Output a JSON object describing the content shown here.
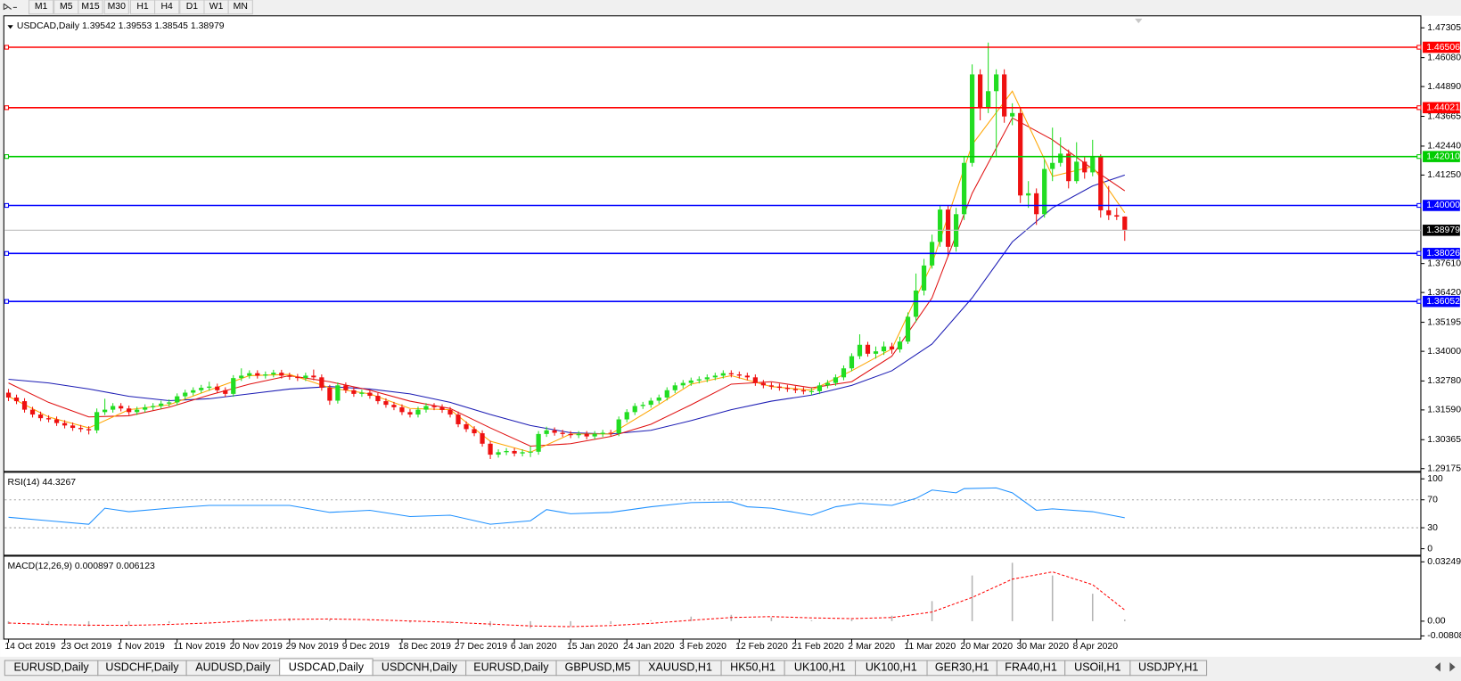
{
  "toolbar": {
    "timeframes": [
      "M1",
      "M5",
      "M15",
      "M30",
      "H1",
      "H4",
      "D1",
      "W1",
      "MN"
    ]
  },
  "chart_data": [
    {
      "type": "candlestick",
      "title": "USDCAD,Daily  1.39542 1.39553 1.38545 1.38979",
      "up_color": "#22dd22",
      "down_color": "#ee1111",
      "ylim": [
        1.291,
        1.4776
      ],
      "yticks": [
        1.47305,
        {
          "value": 1.4608,
          "label": "1.46080"
        },
        {
          "value": 1.4489,
          "label": "1.44890"
        },
        1.43665,
        {
          "value": 1.4244,
          "label": "1.42440"
        },
        {
          "value": 1.4125,
          "label": "1.41250"
        },
        {
          "value": 1.3761,
          "label": "1.37610"
        },
        {
          "value": 1.3642,
          "label": "1.36420"
        },
        1.35195,
        {
          "value": 1.34,
          "label": "1.34000"
        },
        {
          "value": 1.3278,
          "label": "1.32780"
        },
        {
          "value": 1.3159,
          "label": "1.31590"
        },
        1.30365,
        1.29175
      ],
      "levels": [
        {
          "value": 1.46506,
          "label": "1.46506",
          "color": "#ff0000"
        },
        {
          "value": 1.44021,
          "label": "1.44021",
          "color": "#ff0000"
        },
        {
          "value": 1.4201,
          "label": "1.42010",
          "color": "#00cc00"
        },
        {
          "value": 1.4,
          "label": "1.40000",
          "color": "#0000ff"
        },
        {
          "value": 1.38026,
          "label": "1.38026",
          "color": "#0000ff"
        },
        {
          "value": 1.36052,
          "label": "1.36052",
          "color": "#0000ff"
        }
      ],
      "last": {
        "value": 1.38979,
        "label": "1.38979",
        "color": "#000000"
      },
      "categories": [
        "14 Oct 2019",
        null,
        null,
        null,
        null,
        null,
        null,
        "23 Oct 2019",
        null,
        null,
        null,
        null,
        null,
        null,
        "1 Nov 2019",
        null,
        null,
        null,
        null,
        null,
        null,
        "11 Nov 2019",
        null,
        null,
        null,
        null,
        null,
        null,
        "20 Nov 2019",
        null,
        null,
        null,
        null,
        null,
        null,
        "29 Nov 2019",
        null,
        null,
        null,
        null,
        null,
        null,
        "9 Dec 2019",
        null,
        null,
        null,
        null,
        null,
        null,
        "18 Dec 2019",
        null,
        null,
        null,
        null,
        null,
        null,
        "27 Dec 2019",
        null,
        null,
        null,
        null,
        null,
        null,
        "6 Jan 2020",
        null,
        null,
        null,
        null,
        null,
        null,
        "15 Jan 2020",
        null,
        null,
        null,
        null,
        null,
        null,
        "24 Jan 2020",
        null,
        null,
        null,
        null,
        null,
        null,
        "3 Feb 2020",
        null,
        null,
        null,
        null,
        null,
        null,
        "12 Feb 2020",
        null,
        null,
        null,
        null,
        null,
        null,
        "21 Feb 2020",
        null,
        null,
        null,
        null,
        null,
        null,
        "2 Mar 2020",
        null,
        null,
        null,
        null,
        null,
        null,
        "11 Mar 2020",
        null,
        null,
        null,
        null,
        null,
        null,
        "20 Mar 2020",
        null,
        null,
        null,
        null,
        null,
        null,
        "30 Mar 2020",
        null,
        null,
        null,
        null,
        null,
        null,
        "8 Apr 2020",
        null,
        null,
        null,
        null,
        null,
        null
      ],
      "open": [
        1.323,
        1.321,
        1.3195,
        1.316,
        1.314,
        1.3125,
        1.312,
        1.3105,
        1.3095,
        1.3085,
        1.308,
        1.3075,
        1.315,
        1.316,
        1.3175,
        1.3165,
        1.315,
        1.316,
        1.317,
        1.3175,
        1.3185,
        1.319,
        1.3215,
        1.323,
        1.324,
        1.325,
        1.3255,
        1.324,
        1.3225,
        1.329,
        1.33,
        1.331,
        1.33,
        1.3305,
        1.3312,
        1.33,
        1.3295,
        1.329,
        1.33,
        1.3293,
        1.325,
        1.3197,
        1.326,
        1.324,
        1.3225,
        1.323,
        1.3217,
        1.3195,
        1.318,
        1.317,
        1.315,
        1.314,
        1.316,
        1.3175,
        1.317,
        1.3159,
        1.314,
        1.31,
        1.308,
        1.3063,
        1.302,
        1.2975,
        1.2985,
        1.299,
        1.298,
        1.2985,
        1.2987,
        1.306,
        1.3075,
        1.3065,
        1.306,
        1.3055,
        1.306,
        1.305,
        1.306,
        1.3065,
        1.3063,
        1.312,
        1.315,
        1.3175,
        1.318,
        1.3197,
        1.321,
        1.324,
        1.326,
        1.327,
        1.328,
        1.3285,
        1.3293,
        1.33,
        1.331,
        1.3305,
        1.33,
        1.3293,
        1.327,
        1.326,
        1.3255,
        1.325,
        1.3245,
        1.324,
        1.3235,
        1.3236,
        1.326,
        1.327,
        1.3293,
        1.333,
        1.338,
        1.3427,
        1.339,
        1.34,
        1.342,
        1.3408,
        1.344,
        1.3542,
        1.365,
        1.3753,
        1.385,
        1.3983,
        1.383,
        1.3964,
        1.4175,
        1.4539,
        1.44,
        1.447,
        1.4539,
        1.4366,
        1.438,
        1.4041,
        1.405,
        1.3964,
        1.415,
        1.4175,
        1.4213,
        1.41,
        1.418,
        1.4136,
        1.42,
        1.398,
        1.396,
        1.39542
      ],
      "high": [
        1.3245,
        1.3222,
        1.3207,
        1.3172,
        1.3152,
        1.3137,
        1.3132,
        1.3117,
        1.3107,
        1.3097,
        1.3092,
        1.3165,
        1.3205,
        1.3187,
        1.3187,
        1.3177,
        1.3172,
        1.3182,
        1.3187,
        1.3197,
        1.3202,
        1.3227,
        1.3242,
        1.3252,
        1.3262,
        1.3275,
        1.3267,
        1.3252,
        1.3302,
        1.333,
        1.3322,
        1.3322,
        1.3317,
        1.3324,
        1.3324,
        1.3312,
        1.3307,
        1.3312,
        1.3325,
        1.3305,
        1.3262,
        1.3272,
        1.3272,
        1.3252,
        1.3242,
        1.3242,
        1.3229,
        1.3207,
        1.3192,
        1.3182,
        1.3162,
        1.3172,
        1.3187,
        1.3187,
        1.3182,
        1.3171,
        1.3152,
        1.3112,
        1.3092,
        1.3075,
        1.3032,
        1.2997,
        1.3002,
        1.3002,
        1.2997,
        1.301,
        1.3072,
        1.309,
        1.3087,
        1.3077,
        1.3072,
        1.3072,
        1.3072,
        1.3072,
        1.3077,
        1.3077,
        1.3132,
        1.3162,
        1.3187,
        1.3192,
        1.3209,
        1.3222,
        1.3252,
        1.3272,
        1.3282,
        1.3292,
        1.3297,
        1.3305,
        1.3312,
        1.3322,
        1.3322,
        1.3317,
        1.3312,
        1.3305,
        1.3282,
        1.3272,
        1.3267,
        1.3262,
        1.3257,
        1.3252,
        1.3248,
        1.3272,
        1.3282,
        1.3305,
        1.3342,
        1.3392,
        1.347,
        1.3439,
        1.342,
        1.344,
        1.3435,
        1.346,
        1.356,
        1.372,
        1.378,
        1.388,
        1.4,
        1.4,
        1.399,
        1.42,
        1.458,
        1.456,
        1.467,
        1.456,
        1.456,
        1.442,
        1.44,
        1.41,
        1.407,
        1.419,
        1.432,
        1.428,
        1.423,
        1.426,
        1.42,
        1.427,
        1.421,
        1.408,
        1.399,
        1.39553
      ],
      "low": [
        1.3195,
        1.3183,
        1.3148,
        1.3128,
        1.3113,
        1.3108,
        1.3093,
        1.3083,
        1.3073,
        1.3068,
        1.3058,
        1.3063,
        1.3138,
        1.3148,
        1.3153,
        1.3138,
        1.3138,
        1.3148,
        1.3158,
        1.3163,
        1.3173,
        1.3178,
        1.3203,
        1.3218,
        1.3228,
        1.3238,
        1.3228,
        1.3213,
        1.3213,
        1.3278,
        1.3288,
        1.3288,
        1.3288,
        1.3293,
        1.3288,
        1.3283,
        1.3278,
        1.3278,
        1.3281,
        1.3238,
        1.318,
        1.3185,
        1.3228,
        1.3213,
        1.3213,
        1.3205,
        1.3183,
        1.3168,
        1.3158,
        1.3138,
        1.3128,
        1.3128,
        1.3148,
        1.3158,
        1.3147,
        1.3128,
        1.3088,
        1.3068,
        1.3051,
        1.3008,
        1.2957,
        1.2963,
        1.2973,
        1.2968,
        1.2968,
        1.2965,
        1.2975,
        1.3048,
        1.3053,
        1.3048,
        1.3043,
        1.3043,
        1.3038,
        1.3038,
        1.3048,
        1.3051,
        1.3051,
        1.3108,
        1.3138,
        1.3163,
        1.3168,
        1.3185,
        1.3198,
        1.3228,
        1.3248,
        1.3258,
        1.3268,
        1.3273,
        1.3281,
        1.3288,
        1.3293,
        1.3288,
        1.3281,
        1.3258,
        1.3248,
        1.3243,
        1.3238,
        1.3233,
        1.3228,
        1.3223,
        1.322,
        1.3224,
        1.3248,
        1.3258,
        1.3281,
        1.3318,
        1.3368,
        1.3378,
        1.337,
        1.3385,
        1.339,
        1.3395,
        1.343,
        1.352,
        1.363,
        1.374,
        1.383,
        1.379,
        1.381,
        1.394,
        1.416,
        1.435,
        1.438,
        1.42,
        1.434,
        1.433,
        1.401,
        1.399,
        1.392,
        1.395,
        1.41,
        1.416,
        1.407,
        1.409,
        1.411,
        1.412,
        1.395,
        1.394,
        1.394,
        1.38545
      ],
      "close": [
        1.321,
        1.3195,
        1.316,
        1.314,
        1.3125,
        1.312,
        1.3105,
        1.3095,
        1.3085,
        1.308,
        1.3075,
        1.315,
        1.316,
        1.3175,
        1.3165,
        1.315,
        1.316,
        1.317,
        1.3175,
        1.3185,
        1.319,
        1.3215,
        1.323,
        1.324,
        1.325,
        1.3255,
        1.324,
        1.3225,
        1.329,
        1.33,
        1.331,
        1.33,
        1.3305,
        1.3312,
        1.33,
        1.3295,
        1.329,
        1.33,
        1.3293,
        1.325,
        1.3197,
        1.326,
        1.324,
        1.3225,
        1.323,
        1.3217,
        1.3195,
        1.318,
        1.317,
        1.315,
        1.314,
        1.316,
        1.3175,
        1.317,
        1.3159,
        1.314,
        1.31,
        1.308,
        1.3063,
        1.302,
        1.2975,
        1.2985,
        1.299,
        1.298,
        1.2985,
        1.2987,
        1.306,
        1.3075,
        1.3065,
        1.306,
        1.3055,
        1.306,
        1.305,
        1.306,
        1.3065,
        1.3063,
        1.312,
        1.315,
        1.3175,
        1.318,
        1.3197,
        1.321,
        1.324,
        1.326,
        1.327,
        1.328,
        1.3285,
        1.3293,
        1.33,
        1.331,
        1.3305,
        1.33,
        1.3293,
        1.327,
        1.326,
        1.3255,
        1.325,
        1.3245,
        1.324,
        1.3235,
        1.3236,
        1.326,
        1.327,
        1.3293,
        1.333,
        1.338,
        1.3427,
        1.339,
        1.34,
        1.342,
        1.3408,
        1.344,
        1.3542,
        1.365,
        1.3753,
        1.385,
        1.3983,
        1.383,
        1.3964,
        1.4175,
        1.4539,
        1.44,
        1.447,
        1.4539,
        1.4366,
        1.438,
        1.4041,
        1.405,
        1.3964,
        1.415,
        1.4175,
        1.4213,
        1.41,
        1.418,
        1.4136,
        1.42,
        1.398,
        1.396,
        1.3954,
        1.38979
      ],
      "ma_x": [
        0,
        5,
        10,
        15,
        20,
        25,
        30,
        35,
        40,
        45,
        50,
        55,
        60,
        65,
        70,
        75,
        80,
        85,
        90,
        95,
        100,
        105,
        110,
        115,
        120,
        125,
        130,
        135,
        139
      ],
      "ma": [
        {
          "color": "#1c1cb4",
          "values": [
            1.3285,
            1.327,
            1.3245,
            1.3215,
            1.3197,
            1.3205,
            1.3225,
            1.3245,
            1.3255,
            1.3245,
            1.3225,
            1.319,
            1.314,
            1.3095,
            1.3065,
            1.306,
            1.3075,
            1.3115,
            1.316,
            1.3195,
            1.322,
            1.326,
            1.332,
            1.343,
            1.362,
            1.385,
            1.399,
            1.408,
            1.4125
          ]
        },
        {
          "color": "#e01010",
          "values": [
            1.327,
            1.319,
            1.313,
            1.3135,
            1.317,
            1.322,
            1.3265,
            1.33,
            1.3275,
            1.324,
            1.3195,
            1.3165,
            1.3085,
            1.301,
            1.302,
            1.305,
            1.31,
            1.318,
            1.3265,
            1.3275,
            1.325,
            1.3275,
            1.338,
            1.362,
            1.405,
            1.436,
            1.427,
            1.415,
            1.406
          ]
        },
        {
          "color": "#ffa500",
          "values": [
            1.3215,
            1.313,
            1.3085,
            1.316,
            1.318,
            1.324,
            1.33,
            1.3305,
            1.325,
            1.3225,
            1.3165,
            1.316,
            1.303,
            1.2985,
            1.306,
            1.306,
            1.316,
            1.3265,
            1.33,
            1.3255,
            1.324,
            1.332,
            1.341,
            1.376,
            1.425,
            1.447,
            1.412,
            1.416,
            1.397
          ]
        }
      ]
    },
    {
      "type": "line",
      "title": "RSI(14) 44.3267",
      "color": "#1e90ff",
      "ylim": [
        -8,
        108
      ],
      "yticks": [
        100,
        70,
        30,
        0
      ],
      "levels": [
        70,
        30
      ],
      "x": [
        0,
        5,
        10,
        12,
        15,
        20,
        25,
        30,
        35,
        40,
        45,
        50,
        55,
        60,
        65,
        67,
        70,
        75,
        80,
        85,
        90,
        92,
        95,
        100,
        103,
        106,
        110,
        113,
        115,
        118,
        119,
        123,
        125,
        128,
        130,
        135,
        139
      ],
      "values": [
        45,
        40,
        35,
        58,
        53,
        58,
        62,
        62,
        62,
        52,
        55,
        46,
        48,
        35,
        40,
        56,
        50,
        52,
        60,
        66,
        67,
        60,
        58,
        48,
        60,
        65,
        62,
        72,
        84,
        80,
        86,
        87,
        80,
        55,
        57,
        53,
        44.3267
      ]
    },
    {
      "type": "bar",
      "title": "MACD(12,26,9) 0.000897 0.006123",
      "color": "#b4b4b4",
      "ylim": [
        -0.0093,
        0.0351
      ],
      "yticks": [
        0.032493,
        {
          "value": 0,
          "label": "0.00"
        },
        -0.00808
      ],
      "x": [
        0,
        5,
        10,
        15,
        20,
        25,
        30,
        35,
        40,
        45,
        50,
        55,
        60,
        65,
        70,
        75,
        80,
        85,
        90,
        95,
        100,
        105,
        110,
        115,
        120,
        125,
        130,
        135,
        139
      ],
      "values": [
        -0.0015,
        -0.0022,
        -0.0028,
        -0.0022,
        -0.0012,
        -0.0002,
        0.001,
        0.0015,
        0.001,
        0.0002,
        -0.0008,
        -0.0012,
        -0.0028,
        -0.0038,
        -0.0028,
        -0.0015,
        0.0005,
        0.0025,
        0.0035,
        0.002,
        0.0005,
        0.001,
        0.003,
        0.011,
        0.025,
        0.032,
        0.025,
        0.015,
        0.000897
      ],
      "signal": {
        "color": "#ff0000",
        "values": [
          -0.001,
          -0.0018,
          -0.0022,
          -0.0023,
          -0.0018,
          -0.001,
          0.0002,
          0.001,
          0.0012,
          0.0008,
          0.0001,
          -0.0006,
          -0.0016,
          -0.0026,
          -0.003,
          -0.0024,
          -0.0012,
          0.0005,
          0.002,
          0.0025,
          0.0018,
          0.0014,
          0.002,
          0.005,
          0.013,
          0.023,
          0.027,
          0.02,
          0.006123
        ]
      }
    }
  ],
  "tabs": {
    "items": [
      "EURUSD,Daily",
      "USDCHF,Daily",
      "AUDUSD,Daily",
      "USDCAD,Daily",
      "USDCNH,Daily",
      "EURUSD,Daily",
      "GBPUSD,M5",
      "XAUUSD,H1",
      "HK50,H1",
      "UK100,H1",
      "UK100,H1",
      "GER30,H1",
      "FRA40,H1",
      "USOil,H1",
      "USDJPY,H1"
    ],
    "active": 3
  }
}
